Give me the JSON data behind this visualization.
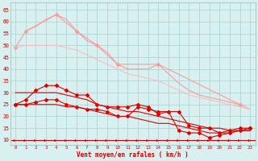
{
  "x": [
    0,
    1,
    2,
    3,
    4,
    5,
    6,
    7,
    8,
    9,
    10,
    11,
    12,
    13,
    14,
    15,
    16,
    17,
    18,
    19,
    20,
    21,
    22,
    23
  ],
  "series": [
    {
      "name": "pink_upper_markers",
      "color": "#ff9999",
      "linewidth": 0.8,
      "marker": "D",
      "markersize": 2.0,
      "values": [
        null,
        56,
        null,
        null,
        63,
        null,
        56,
        null,
        50,
        null,
        42,
        null,
        null,
        null,
        42,
        null,
        null,
        null,
        null,
        null,
        null,
        null,
        25,
        null
      ]
    },
    {
      "name": "pink_upper",
      "color": "#ff9999",
      "linewidth": 0.8,
      "marker": null,
      "markersize": 0,
      "values": [
        49,
        56,
        58,
        61,
        63,
        61,
        56,
        52,
        50,
        47,
        42,
        40,
        40,
        40,
        42,
        38,
        34,
        31,
        29,
        28,
        27,
        26,
        25,
        23
      ]
    },
    {
      "name": "pink_lower_markers",
      "color": "#ff9999",
      "linewidth": 0.8,
      "marker": "D",
      "markersize": 2.0,
      "values": [
        49,
        null,
        null,
        null,
        null,
        null,
        null,
        null,
        null,
        null,
        null,
        null,
        null,
        null,
        null,
        null,
        null,
        null,
        null,
        null,
        null,
        null,
        null,
        null
      ]
    },
    {
      "name": "pink_lower",
      "color": "#ffbbbb",
      "linewidth": 0.8,
      "marker": null,
      "markersize": 0,
      "values": [
        49,
        50,
        50,
        50,
        50,
        49,
        48,
        46,
        44,
        42,
        40,
        38,
        37,
        36,
        35,
        33,
        31,
        29,
        28,
        27,
        26,
        25,
        24,
        23
      ]
    },
    {
      "name": "red_upper_markers",
      "color": "#dd0000",
      "linewidth": 0.8,
      "marker": "D",
      "markersize": 2.0,
      "values": [
        25,
        27,
        31,
        33,
        33,
        31,
        29,
        29,
        25,
        24,
        24,
        24,
        25,
        24,
        21,
        22,
        22,
        16,
        15,
        15,
        13,
        14,
        15,
        15
      ]
    },
    {
      "name": "red_upper_smooth",
      "color": "#dd0000",
      "linewidth": 0.8,
      "marker": null,
      "markersize": 0,
      "values": [
        30,
        30,
        30,
        30,
        30,
        29,
        28,
        27,
        25,
        24,
        23,
        22,
        22,
        21,
        20,
        19,
        18,
        17,
        16,
        15,
        15,
        14,
        14,
        14
      ]
    },
    {
      "name": "red_lower_markers",
      "color": "#dd0000",
      "linewidth": 0.8,
      "marker": "D",
      "markersize": 2.0,
      "values": [
        25,
        25,
        26,
        27,
        27,
        25,
        24,
        23,
        23,
        22,
        20,
        20,
        24,
        23,
        22,
        22,
        14,
        13,
        13,
        11,
        12,
        13,
        14,
        15
      ]
    },
    {
      "name": "red_lower_smooth",
      "color": "#dd0000",
      "linewidth": 0.8,
      "marker": null,
      "markersize": 0,
      "values": [
        25,
        25,
        25,
        25,
        25,
        24,
        24,
        23,
        22,
        21,
        20,
        20,
        19,
        18,
        17,
        17,
        16,
        15,
        14,
        13,
        13,
        13,
        14,
        14
      ]
    }
  ],
  "arrows_color": "#cc0000",
  "background_color": "#d8f0f0",
  "grid_color": "#aacece",
  "xlabel": "Vent moyen/en rafales ( km/h )",
  "ylabel_ticks": [
    10,
    15,
    20,
    25,
    30,
    35,
    40,
    45,
    50,
    55,
    60,
    65
  ],
  "xlim": [
    -0.5,
    23.5
  ],
  "ylim": [
    8,
    68
  ],
  "xlabel_color": "#cc0000",
  "tick_color": "#cc0000"
}
